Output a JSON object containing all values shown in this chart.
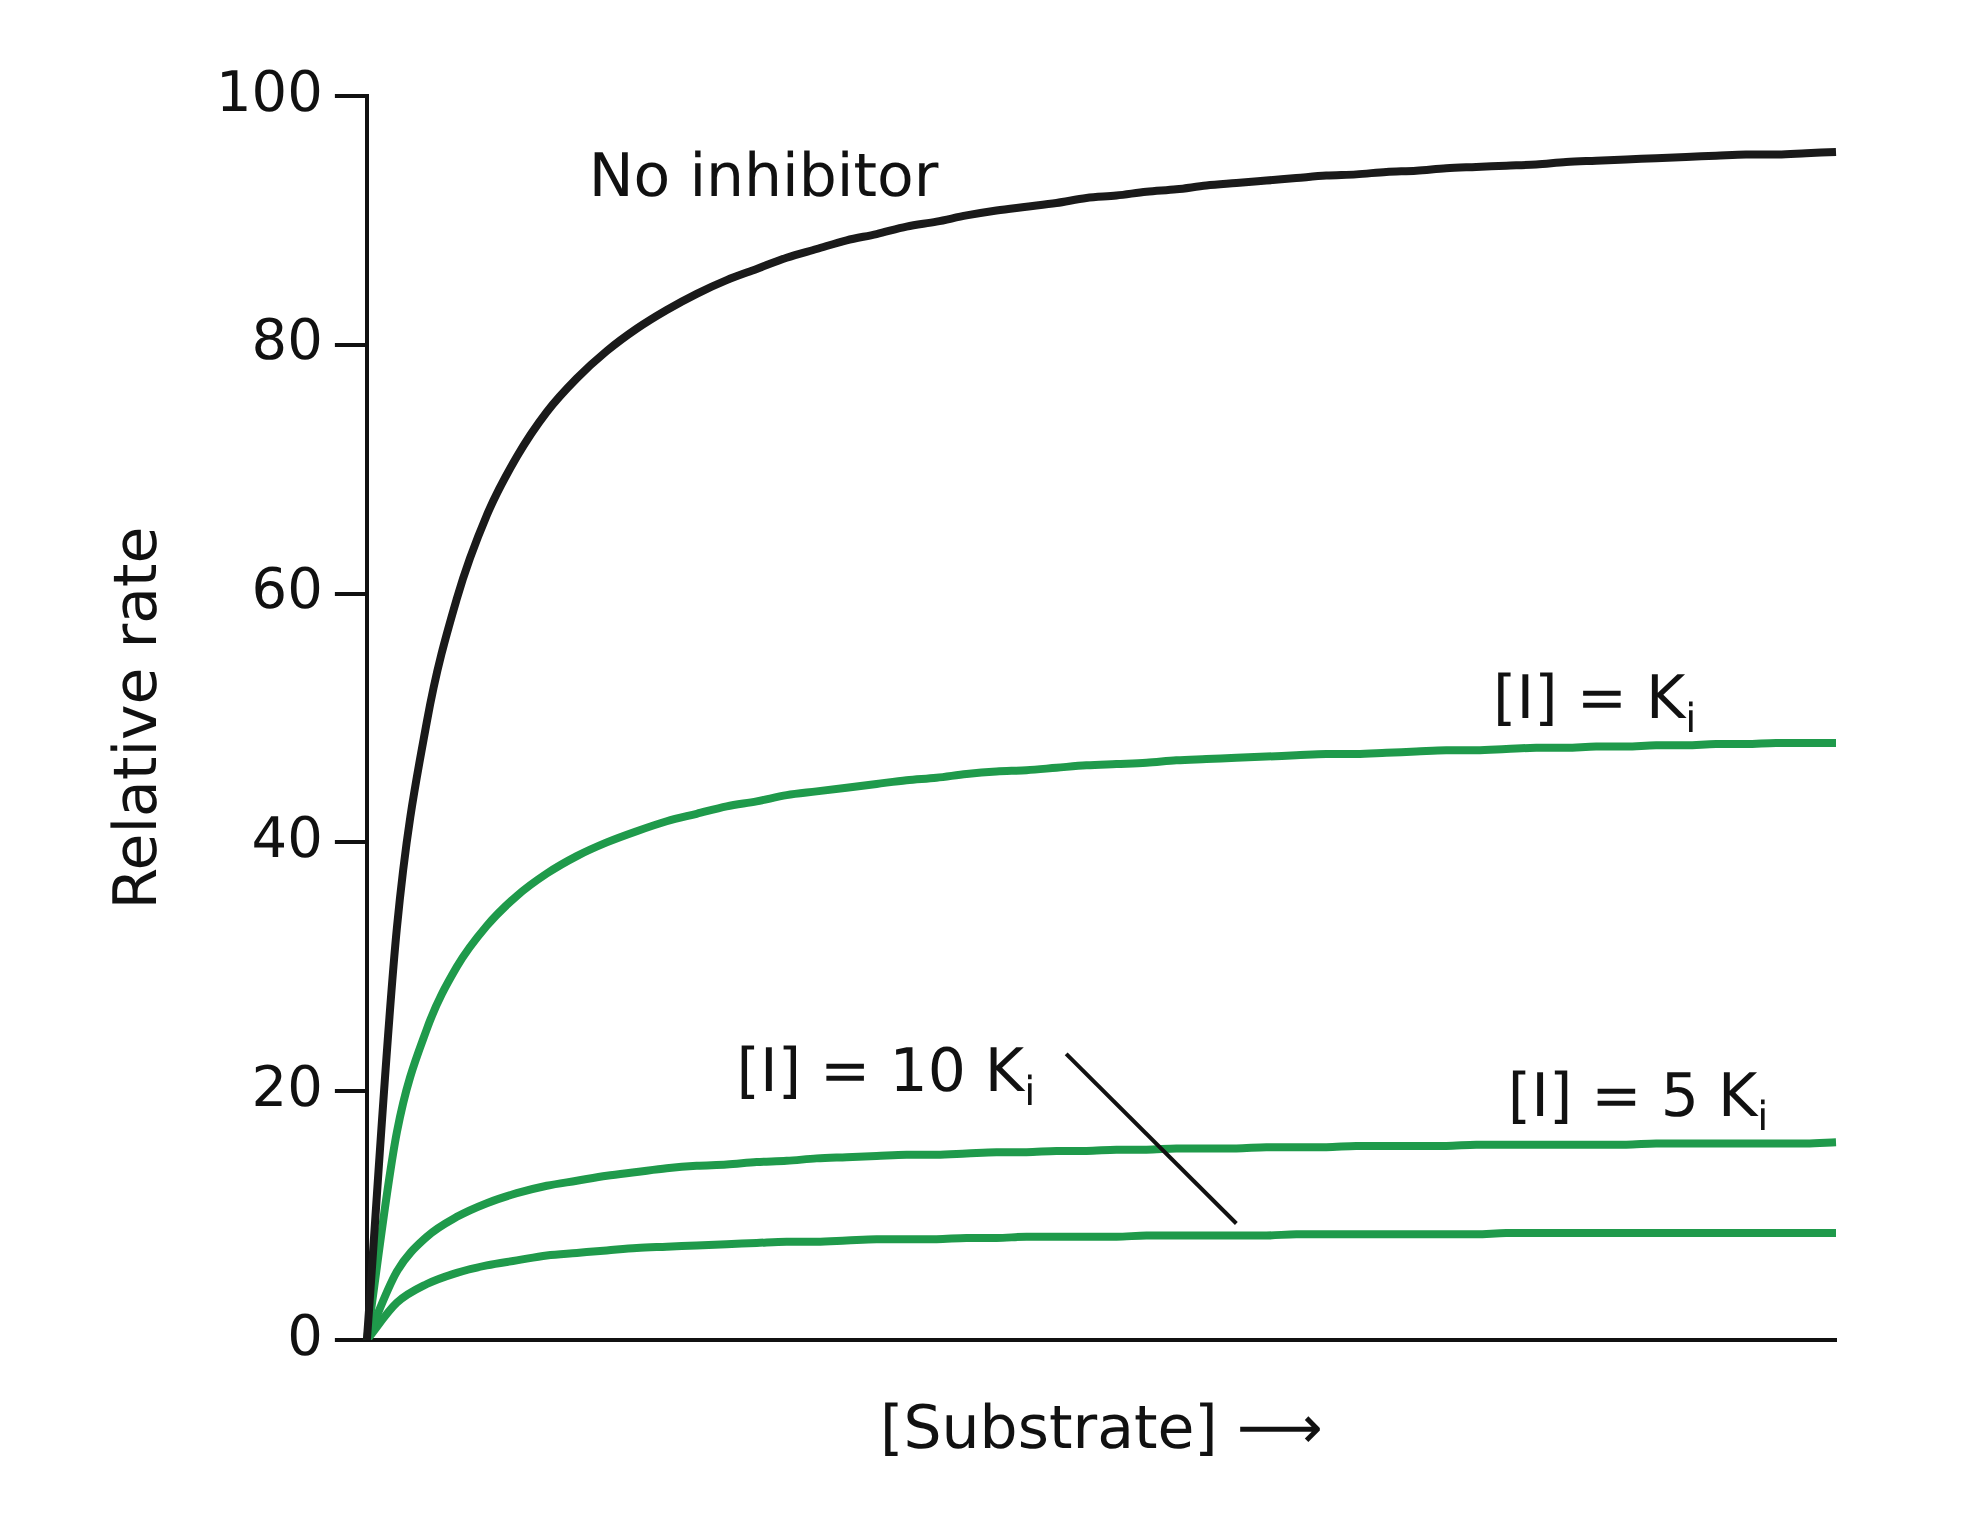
{
  "chart_data": {
    "type": "line",
    "xlabel": "[Substrate] ⟶",
    "ylabel": "Relative rate",
    "categories": [
      null,
      null,
      null,
      null,
      null,
      null,
      null,
      null,
      null,
      null,
      null,
      null,
      null,
      null,
      null,
      null,
      null,
      null,
      null,
      null,
      null,
      null,
      null,
      null,
      null,
      null,
      null,
      null,
      null,
      null,
      null,
      null,
      null,
      null,
      null,
      null,
      null,
      null,
      null,
      null,
      null,
      null,
      null,
      null,
      null,
      null,
      null,
      null,
      null,
      null
    ],
    "ylim": [
      0,
      100
    ],
    "yticks": [
      0,
      20,
      40,
      60,
      80,
      100
    ],
    "tick_labels": "y",
    "series": [
      {
        "name": "No inhibitor",
        "color": "#1a1a1a",
        "values": [
          0,
          33.1,
          49.7,
          59.6,
          66.3,
          71.0,
          74.6,
          77.3,
          79.5,
          81.3,
          82.8,
          84.1,
          85.2,
          86.1,
          87.0,
          87.7,
          88.4,
          88.9,
          89.5,
          89.9,
          90.4,
          90.8,
          91.1,
          91.4,
          91.8,
          92.0,
          92.3,
          92.5,
          92.8,
          93.0,
          93.2,
          93.4,
          93.6,
          93.7,
          93.9,
          94.0,
          94.2,
          94.3,
          94.4,
          94.5,
          94.7,
          94.8,
          94.9,
          95.0,
          95.1,
          95.2,
          95.3,
          95.3,
          95.4,
          95.5
        ]
      },
      {
        "name": "[I] = K$_{i}$",
        "color": "#1f9a4b",
        "values": [
          0,
          16.7,
          25,
          30,
          33.3,
          35.7,
          37.5,
          38.9,
          40,
          40.9,
          41.7,
          42.3,
          42.9,
          43.3,
          43.8,
          44.1,
          44.4,
          44.7,
          45,
          45.2,
          45.5,
          45.7,
          45.8,
          46,
          46.2,
          46.3,
          46.4,
          46.6,
          46.7,
          46.8,
          46.9,
          47,
          47.1,
          47.1,
          47.2,
          47.3,
          47.4,
          47.4,
          47.5,
          47.6,
          47.6,
          47.7,
          47.7,
          47.8,
          47.8,
          47.9,
          47.9,
          48,
          48,
          48
        ]
      },
      {
        "name": "[I] = 5 K$_{i}$",
        "color": "#1f9a4b",
        "values": [
          0,
          5.5,
          8.3,
          9.9,
          11,
          11.8,
          12.4,
          12.8,
          13.2,
          13.5,
          13.8,
          14,
          14.1,
          14.3,
          14.4,
          14.6,
          14.7,
          14.8,
          14.9,
          14.9,
          15,
          15.1,
          15.1,
          15.2,
          15.2,
          15.3,
          15.3,
          15.4,
          15.4,
          15.4,
          15.5,
          15.5,
          15.5,
          15.6,
          15.6,
          15.6,
          15.6,
          15.7,
          15.7,
          15.7,
          15.7,
          15.7,
          15.7,
          15.8,
          15.8,
          15.8,
          15.8,
          15.8,
          15.8,
          15.9
        ]
      },
      {
        "name": "[I] = 10 K$_{i}$",
        "color": "#1f9a4b",
        "values": [
          0,
          3,
          4.5,
          5.4,
          6,
          6.4,
          6.8,
          7,
          7.2,
          7.4,
          7.5,
          7.6,
          7.7,
          7.8,
          7.9,
          7.9,
          8,
          8.1,
          8.1,
          8.1,
          8.2,
          8.2,
          8.3,
          8.3,
          8.3,
          8.3,
          8.4,
          8.4,
          8.4,
          8.4,
          8.4,
          8.5,
          8.5,
          8.5,
          8.5,
          8.5,
          8.5,
          8.5,
          8.6,
          8.6,
          8.6,
          8.6,
          8.6,
          8.6,
          8.6,
          8.6,
          8.6,
          8.6,
          8.6,
          8.6
        ]
      }
    ]
  }
}
